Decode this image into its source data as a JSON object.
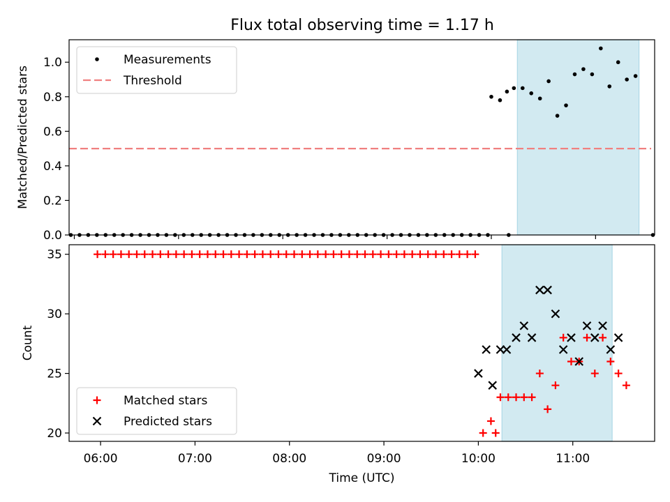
{
  "figure_title": "Flux total observing time = 1.17 h",
  "colors": {
    "measurement": "#000000",
    "threshold": "#f08080",
    "matched": "#ff0000",
    "predicted": "#000000",
    "shade": "#add8e6"
  },
  "chart_data": [
    {
      "type": "scatter",
      "ylabel": "Matched/Predicted stars",
      "xlim": [
        -3.0,
        334.0
      ],
      "ylim": [
        0,
        1.13
      ],
      "yticks": [
        0.0,
        0.2,
        0.4,
        0.6,
        0.8,
        1.0
      ],
      "ytick_labels": [
        "0.0",
        "0.2",
        "0.4",
        "0.6",
        "0.8",
        "1.0"
      ],
      "xticks": [
        0,
        60,
        120,
        180,
        240,
        300
      ],
      "x_tick_labels_shown": false,
      "legend_position": "upper-left",
      "shaded_span": [
        255.0,
        325.0
      ],
      "series": [
        {
          "name": "Measurements",
          "kind": "points",
          "x": [
            -2,
            3,
            8,
            13,
            18,
            23,
            28,
            33,
            38,
            43,
            48,
            53,
            58,
            63,
            68,
            73,
            78,
            83,
            88,
            93,
            98,
            103,
            108,
            113,
            118,
            123,
            128,
            133,
            138,
            143,
            148,
            153,
            158,
            163,
            168,
            173,
            178,
            183,
            188,
            193,
            198,
            203,
            208,
            213,
            218,
            223,
            228,
            233,
            238,
            250,
            263,
            268,
            273,
            278,
            283,
            288,
            293,
            298,
            303,
            308,
            313,
            318,
            323,
            333
          ],
          "y": [
            0,
            0,
            0,
            0,
            0,
            0,
            0,
            0,
            0,
            0,
            0,
            0,
            0,
            0,
            0,
            0,
            0,
            0,
            0,
            0,
            0,
            0,
            0,
            0,
            0,
            0,
            0,
            0,
            0,
            0,
            0,
            0,
            0,
            0,
            0,
            0,
            0,
            0,
            0,
            0,
            0,
            0,
            0,
            0,
            0,
            0,
            0,
            0,
            0,
            0,
            0.82,
            0.79,
            0.89,
            0.69,
            0.75,
            0.93,
            0.96,
            0.93,
            1.08,
            0.86,
            1.0,
            0.9,
            0.92,
            0
          ],
          "extra": {
            "x": [
              240,
              245,
              249,
              253,
              258
            ],
            "y": [
              0.8,
              0.78,
              0.83,
              0.85,
              0.85
            ]
          }
        },
        {
          "name": "Threshold",
          "kind": "dashed-line",
          "x": [
            -3,
            332
          ],
          "y": [
            0.5,
            0.5
          ]
        }
      ]
    },
    {
      "type": "scatter",
      "ylabel": "Count",
      "xlabel": "Time (UTC)",
      "xlim": [
        -20,
        352
      ],
      "ylim": [
        19.3,
        35.8
      ],
      "yticks": [
        20,
        25,
        30,
        35
      ],
      "ytick_labels": [
        "20",
        "25",
        "30",
        "35"
      ],
      "xticks": [
        0,
        60,
        120,
        180,
        240,
        300
      ],
      "xtick_labels": [
        "06:00",
        "07:00",
        "08:00",
        "09:00",
        "10:00",
        "11:00"
      ],
      "legend_position": "lower-left",
      "shaded_span": [
        255.0,
        325.0
      ],
      "series": [
        {
          "name": "Matched stars",
          "marker": "+",
          "x": [
            -2,
            3,
            8,
            13,
            18,
            23,
            28,
            33,
            38,
            43,
            48,
            53,
            58,
            63,
            68,
            73,
            78,
            83,
            88,
            93,
            98,
            103,
            108,
            113,
            118,
            123,
            128,
            133,
            138,
            143,
            148,
            153,
            158,
            163,
            168,
            173,
            178,
            183,
            188,
            193,
            198,
            203,
            208,
            213,
            218,
            223,
            228,
            233,
            238,
            243,
            248,
            251,
            254,
            259,
            264,
            269,
            274,
            279,
            284,
            289,
            294,
            299,
            304,
            309,
            314,
            319,
            324,
            329,
            334
          ],
          "y": [
            35,
            35,
            35,
            35,
            35,
            35,
            35,
            35,
            35,
            35,
            35,
            35,
            35,
            35,
            35,
            35,
            35,
            35,
            35,
            35,
            35,
            35,
            35,
            35,
            35,
            35,
            35,
            35,
            35,
            35,
            35,
            35,
            35,
            35,
            35,
            35,
            35,
            35,
            35,
            35,
            35,
            35,
            35,
            35,
            35,
            35,
            35,
            35,
            35,
            20,
            21,
            20,
            23,
            23,
            23,
            23,
            23,
            25,
            22,
            24,
            28,
            26,
            26,
            28,
            25,
            28,
            26,
            25,
            24
          ]
        },
        {
          "name": "Predicted stars",
          "marker": "x",
          "x": [
            240,
            245,
            249,
            254,
            258,
            264,
            269,
            274,
            279,
            284,
            289,
            294,
            299,
            304,
            309,
            314,
            319,
            324,
            329
          ],
          "y": [
            25,
            27,
            24,
            27,
            27,
            28,
            29,
            28,
            32,
            32,
            30,
            27,
            28,
            26,
            29,
            28,
            29,
            27,
            28
          ]
        }
      ]
    }
  ]
}
